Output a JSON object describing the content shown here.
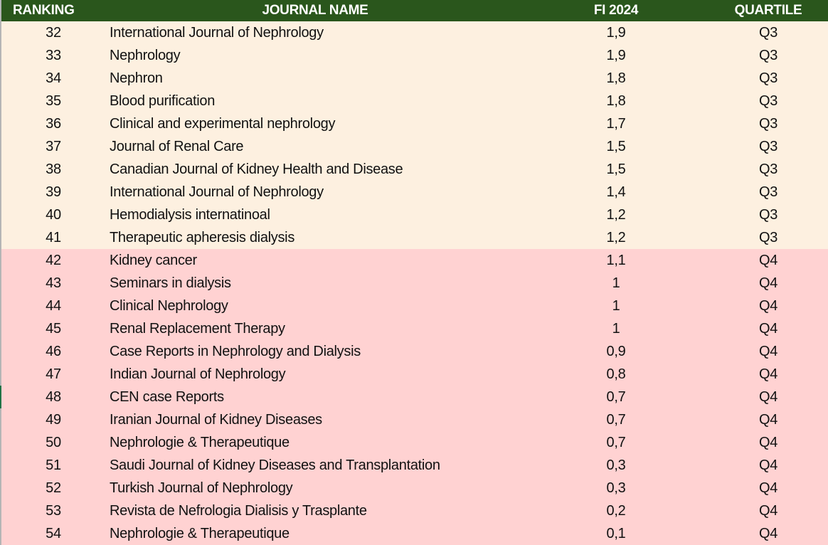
{
  "headers": {
    "ranking": "RANKING",
    "journal": "JOURNAL NAME",
    "fi": "FI 2024",
    "quartile": "QUARTILE"
  },
  "colors": {
    "header": "#2a561c",
    "q3_row": "#fdf0e0",
    "q4_row": "#ffd2d2"
  },
  "rows": [
    {
      "rank": "32",
      "name": "International Journal of Nephrology",
      "fi": "1,9",
      "q": "Q3"
    },
    {
      "rank": "33",
      "name": "Nephrology",
      "fi": "1,9",
      "q": "Q3"
    },
    {
      "rank": "34",
      "name": "Nephron",
      "fi": "1,8",
      "q": "Q3"
    },
    {
      "rank": "35",
      "name": "Blood purification",
      "fi": "1,8",
      "q": "Q3"
    },
    {
      "rank": "36",
      "name": "Clinical and experimental nephrology",
      "fi": "1,7",
      "q": "Q3"
    },
    {
      "rank": "37",
      "name": "Journal of Renal Care",
      "fi": "1,5",
      "q": "Q3"
    },
    {
      "rank": "38",
      "name": "Canadian Journal of Kidney Health and Disease",
      "fi": "1,5",
      "q": "Q3"
    },
    {
      "rank": "39",
      "name": "International Journal of Nephrology",
      "fi": "1,4",
      "q": "Q3"
    },
    {
      "rank": "40",
      "name": "Hemodialysis internatinoal",
      "fi": "1,2",
      "q": "Q3"
    },
    {
      "rank": "41",
      "name": "Therapeutic apheresis dialysis",
      "fi": "1,2",
      "q": "Q3"
    },
    {
      "rank": "42",
      "name": "Kidney cancer",
      "fi": "1,1",
      "q": "Q4"
    },
    {
      "rank": "43",
      "name": "Seminars in dialysis",
      "fi": "1",
      "q": "Q4"
    },
    {
      "rank": "44",
      "name": "Clinical Nephrology",
      "fi": "1",
      "q": "Q4"
    },
    {
      "rank": "45",
      "name": "Renal Replacement Therapy",
      "fi": "1",
      "q": "Q4"
    },
    {
      "rank": "46",
      "name": "Case Reports in Nephrology and Dialysis",
      "fi": "0,9",
      "q": "Q4"
    },
    {
      "rank": "47",
      "name": "Indian Journal of Nephrology",
      "fi": "0,8",
      "q": "Q4"
    },
    {
      "rank": "48",
      "name": "CEN case Reports",
      "fi": "0,7",
      "q": "Q4"
    },
    {
      "rank": "49",
      "name": "Iranian Journal of Kidney Diseases",
      "fi": "0,7",
      "q": "Q4"
    },
    {
      "rank": "50",
      "name": "Nephrologie & Therapeutique",
      "fi": "0,7",
      "q": "Q4"
    },
    {
      "rank": "51",
      "name": "Saudi Journal of Kidney Diseases and Transplantation",
      "fi": "0,3",
      "q": "Q4"
    },
    {
      "rank": "52",
      "name": "Turkish Journal of Nephrology",
      "fi": "0,3",
      "q": "Q4"
    },
    {
      "rank": "53",
      "name": "Revista de Nefrologia Dialisis y Trasplante",
      "fi": "0,2",
      "q": "Q4"
    },
    {
      "rank": "54",
      "name": "Nephrologie & Therapeutique",
      "fi": "0,1",
      "q": "Q4"
    }
  ]
}
